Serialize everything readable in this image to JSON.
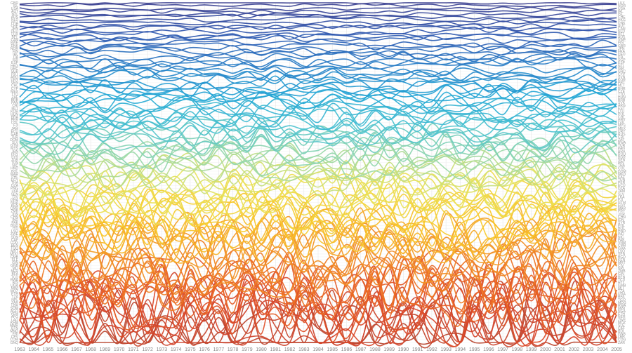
{
  "chart_data": {
    "type": "line",
    "title": "",
    "xlabel": "",
    "ylabel": "",
    "x": [
      "1963",
      "1964",
      "1965",
      "1966",
      "1967",
      "1968",
      "1969",
      "1970",
      "1971",
      "1972",
      "1973",
      "1974",
      "1975",
      "1976",
      "1977",
      "1978",
      "1979",
      "1980",
      "1981",
      "1982",
      "1983",
      "1984",
      "1985",
      "1986",
      "1987",
      "1988",
      "1989",
      "1990",
      "1991",
      "1992",
      "1993",
      "1994",
      "1995",
      "1996",
      "1997",
      "1998",
      "1999",
      "2000",
      "2001",
      "2002",
      "2003",
      "2004",
      "2005"
    ],
    "rank_count": 120,
    "series_count": 120,
    "color_scale": [
      "#3b3f8f",
      "#2f58b0",
      "#2a7fc7",
      "#23a7d6",
      "#4cc3cf",
      "#9ad8a8",
      "#e8e35a",
      "#f8c92a",
      "#f39a25",
      "#ec6a22",
      "#d8442a",
      "#b8452f"
    ],
    "grid": true,
    "legend": "none",
    "left_rank_labels": [
      "GBR",
      "ISL",
      "USA",
      "AUT",
      "NZL",
      "AUS",
      "NLD",
      "FRA",
      "CHE",
      "JPN",
      "DEU",
      "LUX",
      "BEL",
      "CAN",
      "SWE",
      "DNK",
      "NOR",
      "FIN",
      "IRL",
      "ITA",
      "ISR",
      "ESP",
      "HKG",
      "GRC",
      "SGP",
      "PRT",
      "ARG",
      "URY",
      "VEN",
      "CHL",
      "CYP",
      "MEX",
      "TTO",
      "ZAF",
      "BRB",
      "PAN",
      "CRI",
      "MLT",
      "KOR",
      "HUN",
      "BRA",
      "PER",
      "COL",
      "FJI",
      "JAM",
      "ECU",
      "GAB",
      "TUR",
      "DOM",
      "SLV",
      "GTM",
      "MYS",
      "IRN",
      "PRY",
      "SYR",
      "JOR",
      "TUN",
      "NIC",
      "HND",
      "BOL",
      "MAR",
      "PHL",
      "EGY",
      "THA",
      "DZA",
      "PNG",
      "LKA",
      "SEN",
      "CIV",
      "GHA",
      "NGA",
      "KEN",
      "CMR",
      "ZMB",
      "IDN",
      "CHN",
      "IND",
      "PAK",
      "BGD",
      "HTI",
      "LSO",
      "ZWE",
      "SDN",
      "CAF",
      "COG",
      "BEN",
      "TGO",
      "MRT",
      "MDG",
      "GMB",
      "SLE",
      "GIN",
      "GNB",
      "MLI",
      "NER",
      "BFA",
      "TCD",
      "RWA",
      "BDI",
      "UGA",
      "MWI",
      "MOZ",
      "ETH",
      "TZA",
      "NPL",
      "ZAR",
      "LBR",
      "SOM",
      "AGO",
      "YEM",
      "AFG",
      "LAO",
      "KHM",
      "MMR",
      "BTN",
      "MNG",
      "ERI",
      "CPV",
      "COM",
      "GNQ"
    ],
    "right_rank_labels": [
      "LUX",
      "NOR",
      "USA",
      "IRL",
      "ISL",
      "CHE",
      "HKG",
      "DNK",
      "AUT",
      "CAN",
      "NLD",
      "BEL",
      "AUS",
      "SWE",
      "FIN",
      "GBR",
      "JPN",
      "FRA",
      "DEU",
      "ITA",
      "SGP",
      "ESP",
      "NZL",
      "ISR",
      "GRC",
      "CYP",
      "SVN",
      "KOR",
      "PRT",
      "MLT",
      "BHR",
      "CZE",
      "TTO",
      "HUN",
      "BRB",
      "SVK",
      "ARG",
      "EST",
      "LTU",
      "POL",
      "CHL",
      "HRV",
      "LVA",
      "MYS",
      "MEX",
      "URY",
      "RUS",
      "CRI",
      "ZAF",
      "BWA",
      "TUR",
      "PAN",
      "BRA",
      "ROU",
      "BGR",
      "VEN",
      "IRN",
      "THA",
      "COL",
      "DOM",
      "MKD",
      "KAZ",
      "TUN",
      "PER",
      "ECU",
      "DZA",
      "JAM",
      "SLV",
      "LKA",
      "FJI",
      "GTM",
      "EGY",
      "MAR",
      "PRY",
      "JOR",
      "CHN",
      "IDN",
      "SYR",
      "PHL",
      "BOL",
      "HND",
      "IND",
      "NIC",
      "PAK",
      "VNM",
      "CMR",
      "GHA",
      "LSO",
      "SEN",
      "BGD",
      "KEN",
      "MRT",
      "CIV",
      "NPL",
      "ZMB",
      "GIN",
      "BEN",
      "TCD",
      "HTI",
      "GMB",
      "MLI",
      "TZA",
      "UGA",
      "BFA",
      "TGO",
      "MDG",
      "RWA",
      "MWI",
      "NGA",
      "ETH",
      "NER",
      "ZWE",
      "MOZ",
      "SLE",
      "CAF",
      "BDI",
      "GNB",
      "LBR",
      "COG",
      "ZAR"
    ]
  }
}
